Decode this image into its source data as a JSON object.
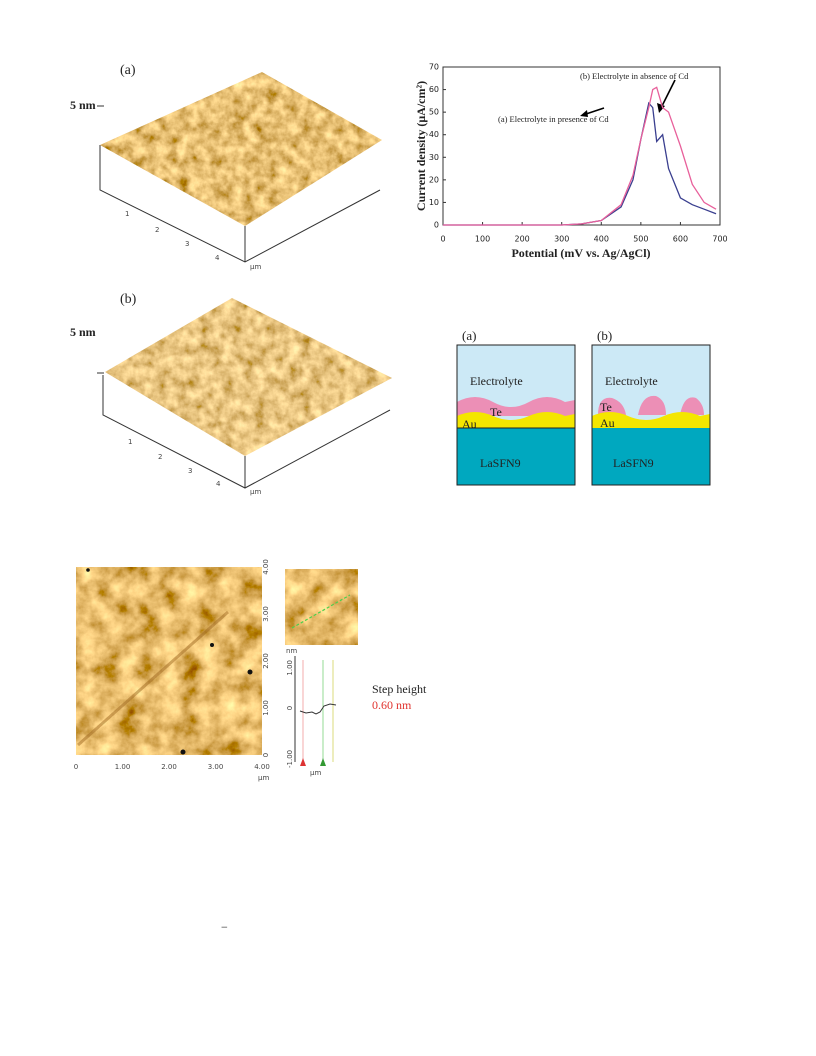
{
  "figure_a": {
    "label": "(a)",
    "z_scale": "5 nm",
    "ticks": [
      "1",
      "2",
      "3",
      "4"
    ],
    "unit": "μm"
  },
  "figure_b": {
    "label": "(b)",
    "z_scale": "5 nm",
    "ticks": [
      "1",
      "2",
      "3",
      "4"
    ],
    "unit": "μm"
  },
  "chart_data": {
    "type": "line",
    "x_label": "Potential (mV vs. Ag/AgCl)",
    "y_label": "Current density (μA/cm²)",
    "x": [
      0,
      100,
      200,
      300,
      350,
      400,
      450,
      480,
      500,
      520,
      530,
      540,
      555,
      570,
      600,
      630,
      660,
      690
    ],
    "series": [
      {
        "name": "(a) Electrolyte in presence of Cd",
        "color": "#3a3f8f",
        "values": [
          0,
          0,
          0,
          0,
          0.5,
          2,
          8,
          20,
          38,
          54,
          52,
          37,
          40,
          25,
          12,
          9,
          7,
          5
        ]
      },
      {
        "name": "(b) Electrolyte in absence of Cd",
        "color": "#e8609b",
        "values": [
          0,
          0,
          0,
          0,
          0.5,
          2,
          9,
          22,
          38,
          52,
          60,
          61,
          52,
          50,
          35,
          18,
          10,
          7
        ]
      }
    ],
    "xlim": [
      0,
      700
    ],
    "xticks": [
      0,
      100,
      200,
      300,
      400,
      500,
      600,
      700
    ],
    "ylim": [
      0,
      70
    ],
    "yticks": [
      0,
      10,
      20,
      30,
      40,
      50,
      60,
      70
    ]
  },
  "schematic": {
    "panels": [
      {
        "label": "(a)",
        "electrolyte": "Electrolyte",
        "te": "Te",
        "au": "Au",
        "substrate": "LaSFN9"
      },
      {
        "label": "(b)",
        "electrolyte": "Electrolyte",
        "te": "Te",
        "au": "Au",
        "substrate": "LaSFN9"
      }
    ]
  },
  "afm_image": {
    "y_ticks": [
      "4.00",
      "3.00",
      "2.00",
      "1.00",
      "0"
    ],
    "x_ticks": [
      "0",
      "1.00",
      "2.00",
      "3.00",
      "4.00"
    ],
    "unit": "μm",
    "inset_unit": "nm",
    "profile": {
      "ticks": [
        "1.00",
        "0",
        "-1.00"
      ],
      "unit": "μm",
      "step_label": "Step height",
      "step_value": "0.60 nm"
    }
  },
  "footer_mark": "−"
}
